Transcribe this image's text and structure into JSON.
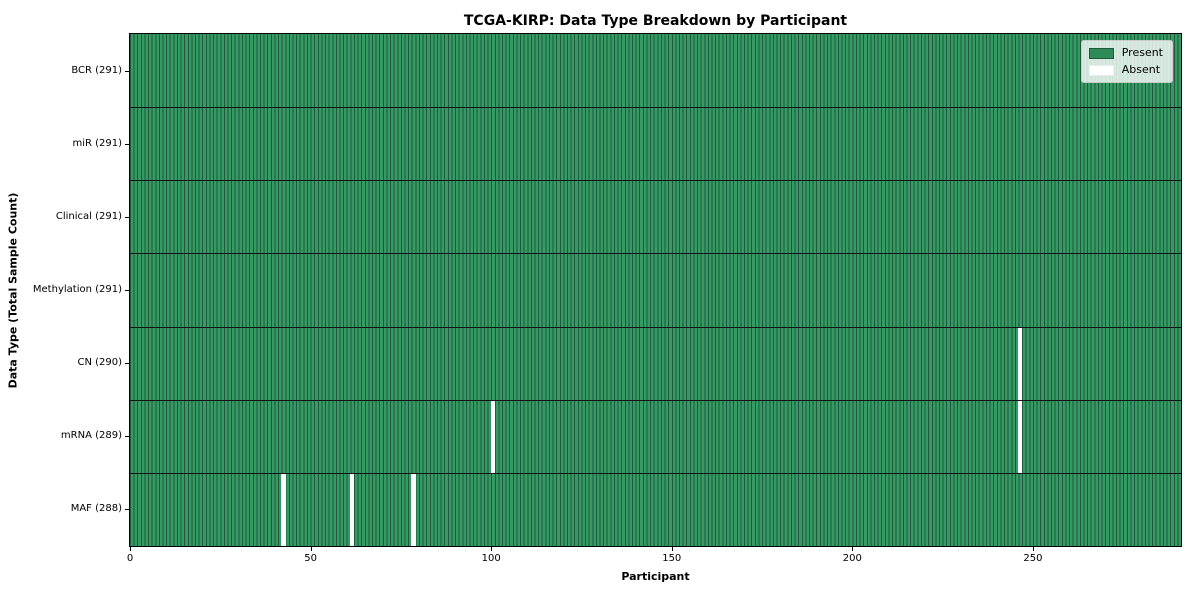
{
  "chart_data": {
    "type": "heatmap",
    "title": "TCGA-KIRP: Data Type Breakdown by Participant",
    "xlabel": "Participant",
    "ylabel": "Data Type (Total Sample Count)",
    "n_participants": 291,
    "x_ticks": [
      0,
      50,
      100,
      150,
      200,
      250
    ],
    "rows": [
      {
        "label": "BCR (291)",
        "data_type": "BCR",
        "total": 291,
        "absent_participants": []
      },
      {
        "label": "miR (291)",
        "data_type": "miR",
        "total": 291,
        "absent_participants": []
      },
      {
        "label": "Clinical (291)",
        "data_type": "Clinical",
        "total": 291,
        "absent_participants": []
      },
      {
        "label": "Methylation (291)",
        "data_type": "Methylation",
        "total": 291,
        "absent_participants": []
      },
      {
        "label": "CN (290)",
        "data_type": "CN",
        "total": 290,
        "absent_participants": [
          246
        ]
      },
      {
        "label": "mRNA (289)",
        "data_type": "mRNA",
        "total": 289,
        "absent_participants": [
          100,
          246
        ]
      },
      {
        "label": "MAF (288)",
        "data_type": "MAF",
        "total": 288,
        "absent_participants": [
          42,
          61,
          78
        ]
      }
    ],
    "legend": [
      {
        "label": "Present",
        "color": "#2e8b57"
      },
      {
        "label": "Absent",
        "color": "#ffffff"
      }
    ],
    "colors": {
      "present_fill": "#359a63",
      "present_edge": "#20593b",
      "absent_fill": "#ffffff",
      "separator": "#131313",
      "axis": "#000000"
    },
    "legend_position": "upper right",
    "grid": false
  }
}
